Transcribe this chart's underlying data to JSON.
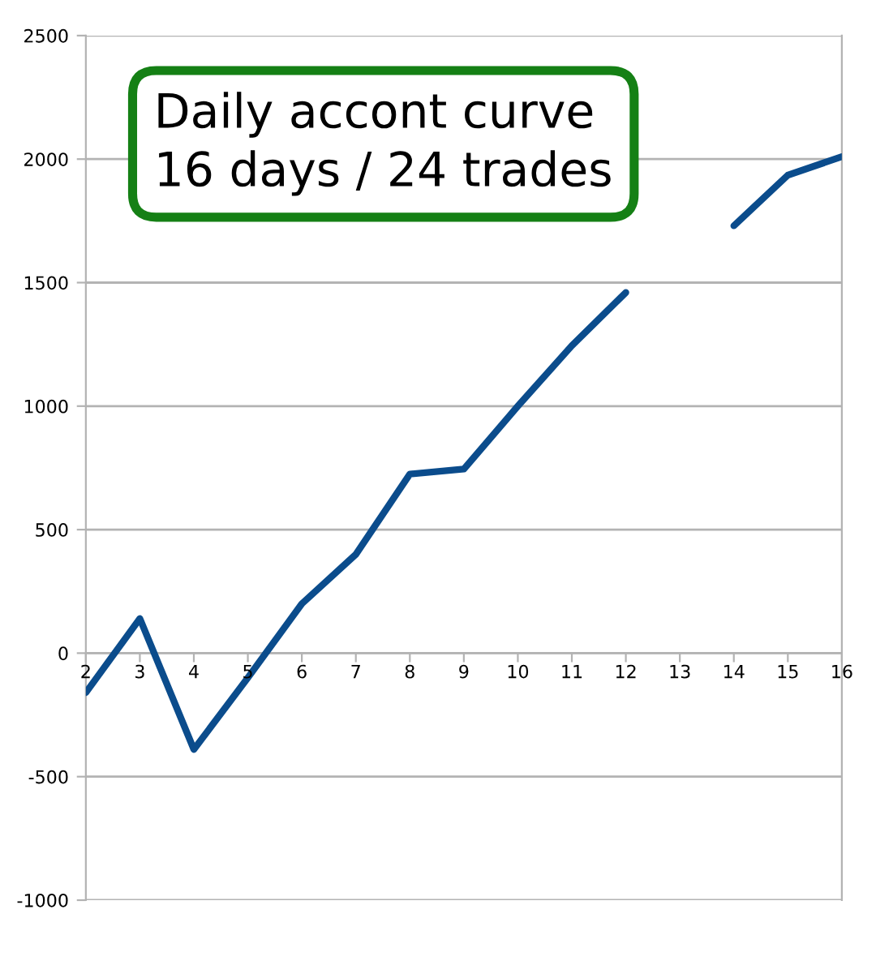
{
  "chart_data": {
    "type": "line",
    "title": "Daily accont curve",
    "subtitle": "16 days / 24 trades",
    "categories": [
      "2",
      "3",
      "4",
      "5",
      "6",
      "7",
      "8",
      "9",
      "10",
      "11",
      "12",
      "13",
      "14",
      "15",
      "16"
    ],
    "series": [
      {
        "color": "#0b4c8c",
        "values": [
          -160,
          140,
          -390,
          -100,
          200,
          400,
          725,
          745,
          1000,
          1245,
          1460,
          null,
          1730,
          1935,
          2010
        ]
      }
    ],
    "ylim": [
      -1000,
      2500
    ],
    "yticks": [
      -1000,
      -500,
      0,
      500,
      1000,
      1500,
      2000,
      2500
    ],
    "grid": "y",
    "marker": "none",
    "line_style": "solid"
  }
}
